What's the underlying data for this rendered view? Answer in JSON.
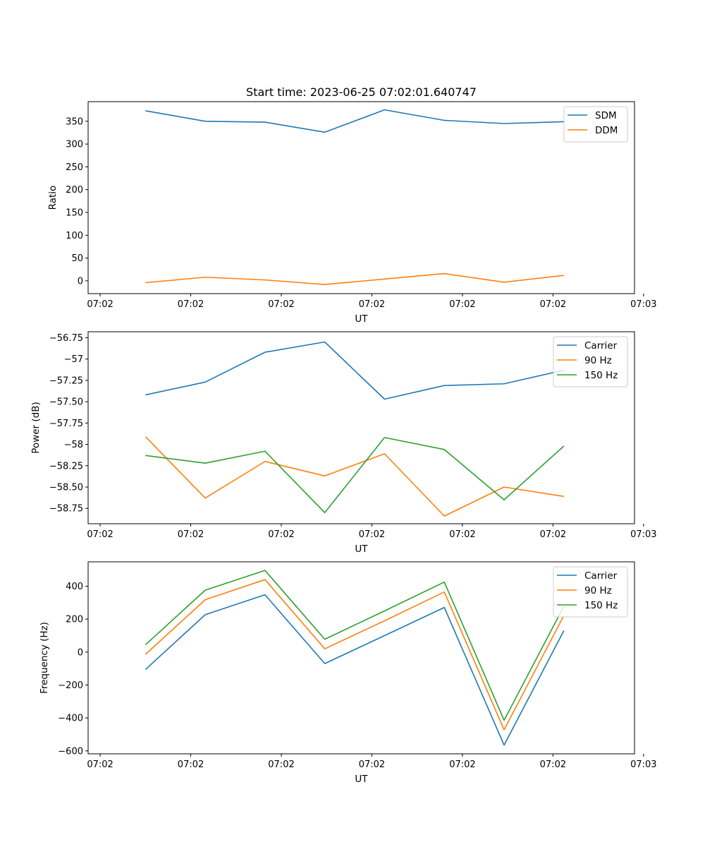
{
  "figure_title": "Start time: 2023-06-25 07:02:01.640747",
  "chart_data": [
    {
      "type": "line",
      "xlabel": "UT",
      "ylabel": "Ratio",
      "x_tick_labels": [
        "07:02",
        "07:02",
        "07:02",
        "07:02",
        "07:02",
        "07:02",
        "07:03"
      ],
      "x_range": [
        -0.133,
        5.9
      ],
      "x_ticks": [
        0,
        1,
        2,
        3,
        4,
        5,
        6
      ],
      "x": [
        0.5,
        1.16,
        1.82,
        2.48,
        3.14,
        3.8,
        4.46,
        5.12
      ],
      "ylim": [
        -28,
        393
      ],
      "yticks": [
        0,
        50,
        100,
        150,
        200,
        250,
        300,
        350
      ],
      "legend_position": "upper right",
      "series": [
        {
          "name": "SDM",
          "color": "#1f77b4",
          "values": [
            373,
            350,
            348,
            326,
            375,
            352,
            345,
            349
          ]
        },
        {
          "name": "DDM",
          "color": "#ff7f0e",
          "values": [
            -4,
            8,
            2,
            -8,
            4,
            16,
            -3,
            12
          ]
        }
      ]
    },
    {
      "type": "line",
      "xlabel": "UT",
      "ylabel": "Power (dB)",
      "x_tick_labels": [
        "07:02",
        "07:02",
        "07:02",
        "07:02",
        "07:02",
        "07:02",
        "07:03"
      ],
      "x_range": [
        -0.133,
        5.9
      ],
      "x_ticks": [
        0,
        1,
        2,
        3,
        4,
        5,
        6
      ],
      "x": [
        0.5,
        1.16,
        1.82,
        2.48,
        3.14,
        3.8,
        4.46,
        5.12
      ],
      "ylim": [
        -58.93,
        -56.68
      ],
      "yticks": [
        -58.75,
        -58.5,
        -58.25,
        -58.0,
        -57.75,
        -57.5,
        -57.25,
        -57.0,
        -56.75
      ],
      "legend_position": "upper right",
      "series": [
        {
          "name": "Carrier",
          "color": "#1f77b4",
          "values": [
            -57.42,
            -57.27,
            -56.92,
            -56.8,
            -57.47,
            -57.31,
            -57.29,
            -57.13
          ]
        },
        {
          "name": "90 Hz",
          "color": "#ff7f0e",
          "values": [
            -57.91,
            -58.63,
            -58.2,
            -58.37,
            -58.11,
            -58.84,
            -58.5,
            -58.61
          ]
        },
        {
          "name": "150 Hz",
          "color": "#2ca02c",
          "values": [
            -58.13,
            -58.22,
            -58.08,
            -58.8,
            -57.92,
            -58.06,
            -58.65,
            -58.02
          ]
        }
      ]
    },
    {
      "type": "line",
      "xlabel": "UT",
      "ylabel": "Frequency (Hz)",
      "x_tick_labels": [
        "07:02",
        "07:02",
        "07:02",
        "07:02",
        "07:02",
        "07:02",
        "07:03"
      ],
      "x_range": [
        -0.133,
        5.9
      ],
      "x_ticks": [
        0,
        1,
        2,
        3,
        4,
        5,
        6
      ],
      "x": [
        0.5,
        1.16,
        1.82,
        2.48,
        3.14,
        3.8,
        4.46,
        5.12
      ],
      "ylim": [
        -618,
        548
      ],
      "yticks": [
        -600,
        -400,
        -200,
        0,
        200,
        400
      ],
      "legend_position": "upper right",
      "series": [
        {
          "name": "Carrier",
          "color": "#1f77b4",
          "values": [
            -106,
            227,
            348,
            -70,
            100,
            271,
            -565,
            130
          ]
        },
        {
          "name": "90 Hz",
          "color": "#ff7f0e",
          "values": [
            -14,
            318,
            440,
            20,
            190,
            365,
            -472,
            222
          ]
        },
        {
          "name": "150 Hz",
          "color": "#2ca02c",
          "values": [
            44,
            376,
            496,
            78,
            250,
            425,
            -414,
            278
          ]
        }
      ]
    }
  ]
}
